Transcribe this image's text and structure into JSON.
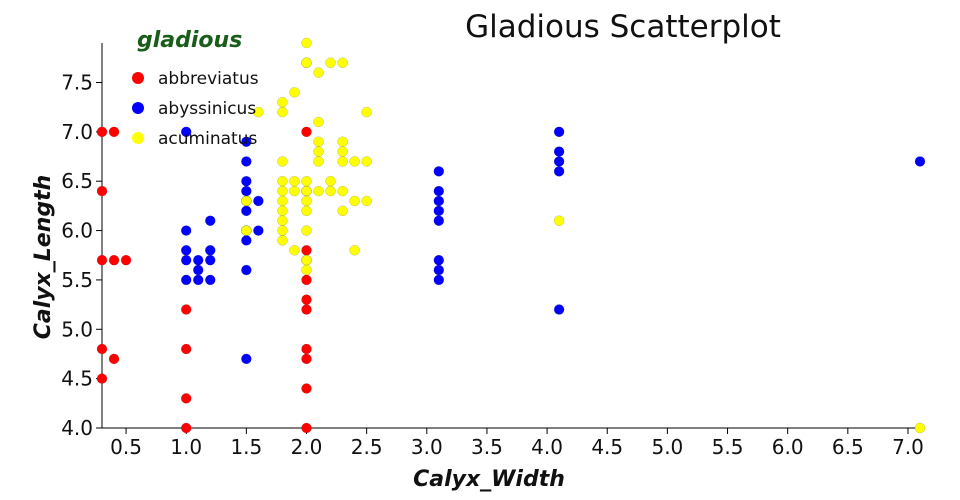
{
  "chart_data": {
    "type": "scatter",
    "title": "Gladious Scatterplot",
    "xlabel": "Calyx_Width",
    "ylabel": "Calyx_Length",
    "xlim": [
      0.3,
      7.1
    ],
    "ylim": [
      4.0,
      7.9
    ],
    "x_ticks": [
      "0.5",
      "1.0",
      "1.5",
      "2.0",
      "2.5",
      "3.0",
      "3.5",
      "4.0",
      "4.5",
      "5.0",
      "5.5",
      "6.0",
      "6.5",
      "7.0"
    ],
    "y_ticks": [
      "4.0",
      "4.5",
      "5.0",
      "5.5",
      "6.0",
      "6.5",
      "7.0",
      "7.5"
    ],
    "grid": false,
    "legend": {
      "title": "gladious",
      "placement": "top-left",
      "entries": [
        "abbreviatus",
        "abyssinicus",
        "acuminatus"
      ]
    },
    "series": [
      {
        "name": "abbreviatus",
        "color": "#ff0000",
        "points": [
          [
            0.3,
            7.0
          ],
          [
            0.4,
            7.0
          ],
          [
            0.3,
            6.4
          ],
          [
            0.3,
            5.7
          ],
          [
            0.4,
            5.7
          ],
          [
            0.5,
            5.7
          ],
          [
            0.3,
            4.8
          ],
          [
            0.4,
            4.7
          ],
          [
            0.3,
            4.5
          ],
          [
            1.0,
            5.2
          ],
          [
            1.0,
            4.8
          ],
          [
            1.0,
            4.3
          ],
          [
            1.0,
            4.0
          ],
          [
            2.0,
            7.0
          ],
          [
            2.0,
            6.4
          ],
          [
            2.0,
            5.8
          ],
          [
            2.0,
            5.7
          ],
          [
            2.0,
            5.5
          ],
          [
            2.0,
            5.3
          ],
          [
            2.0,
            5.2
          ],
          [
            2.0,
            4.8
          ],
          [
            2.0,
            4.7
          ],
          [
            2.0,
            4.4
          ],
          [
            2.0,
            4.0
          ]
        ]
      },
      {
        "name": "abyssinicus",
        "color": "#0000ff",
        "points": [
          [
            1.0,
            7.0
          ],
          [
            1.0,
            6.0
          ],
          [
            1.0,
            5.8
          ],
          [
            1.0,
            5.7
          ],
          [
            1.0,
            5.5
          ],
          [
            1.1,
            5.7
          ],
          [
            1.1,
            5.6
          ],
          [
            1.1,
            5.5
          ],
          [
            1.2,
            6.1
          ],
          [
            1.2,
            5.8
          ],
          [
            1.2,
            5.7
          ],
          [
            1.2,
            5.5
          ],
          [
            1.5,
            6.9
          ],
          [
            1.5,
            6.7
          ],
          [
            1.5,
            6.5
          ],
          [
            1.5,
            6.4
          ],
          [
            1.5,
            6.3
          ],
          [
            1.5,
            6.2
          ],
          [
            1.5,
            6.0
          ],
          [
            1.5,
            5.9
          ],
          [
            1.5,
            5.6
          ],
          [
            1.5,
            4.7
          ],
          [
            1.6,
            6.3
          ],
          [
            1.6,
            6.0
          ],
          [
            3.1,
            6.6
          ],
          [
            3.1,
            6.4
          ],
          [
            3.1,
            6.3
          ],
          [
            3.1,
            6.2
          ],
          [
            3.1,
            6.1
          ],
          [
            3.1,
            5.7
          ],
          [
            3.1,
            5.6
          ],
          [
            3.1,
            5.5
          ],
          [
            4.1,
            7.0
          ],
          [
            4.1,
            6.8
          ],
          [
            4.1,
            6.7
          ],
          [
            4.1,
            6.6
          ],
          [
            4.1,
            5.2
          ],
          [
            7.1,
            6.7
          ]
        ]
      },
      {
        "name": "acuminatus",
        "color": "#ffff00",
        "points": [
          [
            1.8,
            7.3
          ],
          [
            1.8,
            7.2
          ],
          [
            1.8,
            6.7
          ],
          [
            1.8,
            6.5
          ],
          [
            1.8,
            6.4
          ],
          [
            1.8,
            6.3
          ],
          [
            1.8,
            6.2
          ],
          [
            1.8,
            6.1
          ],
          [
            1.8,
            6.0
          ],
          [
            1.8,
            5.9
          ],
          [
            1.9,
            7.4
          ],
          [
            1.9,
            6.5
          ],
          [
            1.9,
            6.4
          ],
          [
            1.9,
            5.8
          ],
          [
            2.0,
            7.9
          ],
          [
            2.0,
            7.7
          ],
          [
            2.0,
            7.7
          ],
          [
            2.0,
            6.5
          ],
          [
            2.0,
            6.4
          ],
          [
            2.0,
            6.3
          ],
          [
            2.0,
            6.2
          ],
          [
            2.0,
            6.0
          ],
          [
            2.0,
            5.7
          ],
          [
            2.0,
            5.6
          ],
          [
            2.1,
            7.6
          ],
          [
            2.1,
            7.1
          ],
          [
            2.1,
            6.9
          ],
          [
            2.1,
            6.8
          ],
          [
            2.1,
            6.7
          ],
          [
            2.1,
            6.4
          ],
          [
            2.2,
            7.7
          ],
          [
            2.2,
            6.5
          ],
          [
            2.2,
            6.4
          ],
          [
            2.3,
            7.7
          ],
          [
            2.3,
            6.9
          ],
          [
            2.3,
            6.8
          ],
          [
            2.3,
            6.7
          ],
          [
            2.3,
            6.4
          ],
          [
            2.3,
            6.2
          ],
          [
            2.4,
            6.7
          ],
          [
            2.4,
            6.3
          ],
          [
            2.4,
            5.8
          ],
          [
            2.5,
            7.2
          ],
          [
            2.5,
            6.7
          ],
          [
            2.5,
            6.3
          ],
          [
            1.5,
            6.3
          ],
          [
            1.5,
            6.0
          ],
          [
            1.6,
            7.2
          ],
          [
            4.1,
            6.1
          ],
          [
            7.1,
            4.0
          ]
        ]
      }
    ]
  }
}
